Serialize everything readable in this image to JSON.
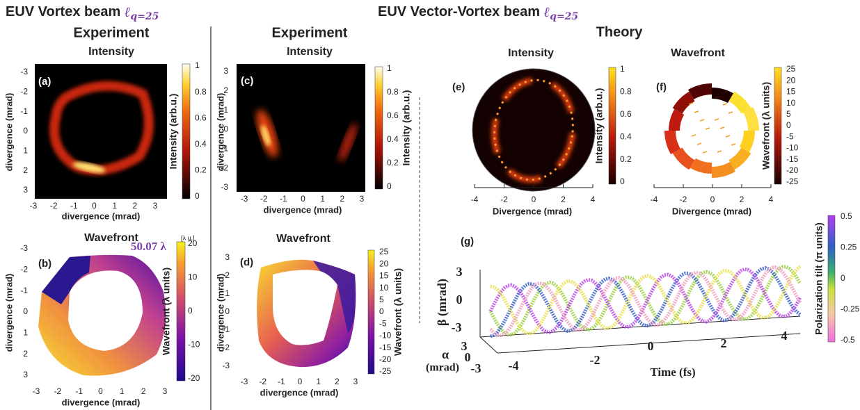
{
  "headers": {
    "vortex": {
      "title": "EUV Vortex beam",
      "symbol": "ℓ",
      "subscript": "q=25"
    },
    "vector_vortex": {
      "title": "EUV Vector-Vortex beam",
      "symbol": "ℓ",
      "subscript": "q=25"
    }
  },
  "sections": {
    "experiment_left": "Experiment",
    "experiment_right": "Experiment",
    "theory": "Theory"
  },
  "panels": {
    "a": {
      "label": "(a)",
      "title": "Intensity",
      "xlabel": "divergence (mrad)",
      "ylabel": "divergence (mrad)",
      "xticks": [
        -3,
        -2,
        -1,
        0,
        1,
        2,
        3
      ],
      "yticks": [
        -3,
        -2,
        -1,
        0,
        1,
        2,
        3
      ],
      "colorbar": {
        "label": "Intensity (arb.u.)",
        "ticks": [
          1,
          0.8,
          0.6,
          0.4,
          0.2,
          0
        ]
      }
    },
    "b": {
      "label": "(b)",
      "title": "Wavefront",
      "annotation": "50.07 λ",
      "unit": "[λ u.]",
      "xlabel": "divergence (mrad)",
      "ylabel": "divergence (mrad)",
      "xticks": [
        -3,
        -2,
        -1,
        0,
        1,
        2,
        3
      ],
      "yticks": [
        -3,
        -2,
        -1,
        0,
        1,
        2,
        3
      ],
      "colorbar": {
        "label": "Wavefront (λ units)",
        "ticks": [
          20,
          10,
          0,
          -10,
          -20
        ]
      }
    },
    "c": {
      "label": "(c)",
      "title": "Intensity",
      "xlabel": "divergence (mrad)",
      "ylabel": "divergence (mrad)",
      "xticks": [
        -3,
        -2,
        -1,
        0,
        1,
        2,
        3
      ],
      "yticks": [
        3,
        2,
        1,
        0,
        -1,
        -2,
        -3
      ],
      "colorbar": {
        "label": "Intensity (arb.u.)",
        "ticks": [
          1,
          0.8,
          0.6,
          0.4,
          0.2,
          0
        ]
      }
    },
    "d": {
      "label": "(d)",
      "title": "Wavefront",
      "xlabel": "divergence (mrad)",
      "ylabel": "divergence (mrad)",
      "xticks": [
        -3,
        -2,
        -1,
        0,
        1,
        2,
        3
      ],
      "yticks": [
        3,
        2,
        1,
        0,
        -1,
        -2,
        -3
      ],
      "colorbar": {
        "label": "Wavefront (λ units)",
        "ticks": [
          25,
          20,
          15,
          10,
          5,
          0,
          -5,
          -10,
          -15,
          -20,
          -25
        ]
      }
    },
    "e": {
      "label": "(e)",
      "title": "Intensity",
      "xlabel": "Divergence (mrad)",
      "xticks": [
        -4,
        -2,
        0,
        2,
        4
      ],
      "colorbar": {
        "label": "Intensity (arb.u.)",
        "ticks": [
          1,
          0.8,
          0.6,
          0.4,
          0.2,
          0
        ]
      }
    },
    "f": {
      "label": "(f)",
      "title": "Wavefront",
      "xlabel": "Divergence (mrad)",
      "xticks": [
        -4,
        -2,
        0,
        2,
        4
      ],
      "colorbar": {
        "label": "Wavefront (λ units)",
        "ticks": [
          25,
          20,
          15,
          10,
          5,
          0,
          -5,
          -10,
          -15,
          -20,
          -25
        ]
      }
    },
    "g": {
      "label": "(g)",
      "beta_label": "β (mrad)",
      "beta_ticks": [
        3,
        0,
        -3
      ],
      "alpha_symbol": "α",
      "alpha_unit": "(mrad)",
      "alpha_ticks": [
        3,
        0,
        -3
      ],
      "time_label": "Time (fs)",
      "time_ticks": [
        -4,
        -2,
        0,
        2,
        4
      ],
      "colorbar": {
        "label": "Polarization tilt (π units)",
        "ticks": [
          0.5,
          0.25,
          0,
          -0.25,
          -0.5
        ]
      }
    }
  }
}
